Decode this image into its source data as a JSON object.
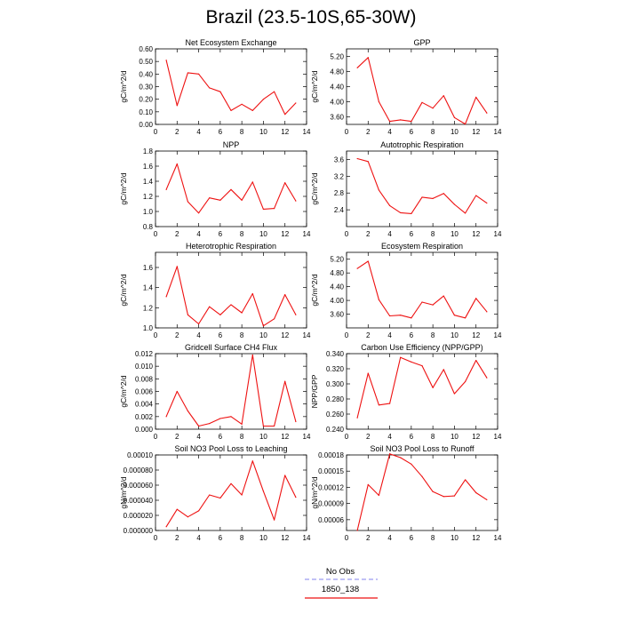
{
  "title": "Brazil (23.5-10S,65-30W)",
  "legend": {
    "entries": [
      {
        "label": "No Obs",
        "color": "#9c9cf0",
        "dash": true
      },
      {
        "label": "1850_138",
        "color": "#ee1111",
        "dash": false
      }
    ]
  },
  "chart_data": [
    {
      "type": "line",
      "title": "Net Ecosystem Exchange",
      "ylabel": "gC/m^2/d",
      "xlim": [
        0,
        14
      ],
      "xticks": [
        0,
        2,
        4,
        6,
        8,
        10,
        12,
        14
      ],
      "ylim": [
        0,
        0.6
      ],
      "yticks": [
        "0.00",
        "0.10",
        "0.20",
        "0.30",
        "0.40",
        "0.50",
        "0.60"
      ],
      "series": [
        {
          "color": "#ee1111",
          "x": [
            1,
            2,
            3,
            4,
            5,
            6,
            7,
            8,
            9,
            10,
            11,
            12,
            13
          ],
          "y": [
            0.51,
            0.15,
            0.41,
            0.4,
            0.29,
            0.26,
            0.11,
            0.16,
            0.11,
            0.2,
            0.26,
            0.08,
            0.17
          ]
        }
      ]
    },
    {
      "type": "line",
      "title": "GPP",
      "ylabel": "gC/m^2/d",
      "xlim": [
        0,
        14
      ],
      "xticks": [
        0,
        2,
        4,
        6,
        8,
        10,
        12,
        14
      ],
      "ylim": [
        3.4,
        5.4
      ],
      "yticks": [
        "3.60",
        "4.00",
        "4.40",
        "4.80",
        "5.20"
      ],
      "series": [
        {
          "color": "#ee1111",
          "x": [
            1,
            2,
            3,
            4,
            5,
            6,
            7,
            8,
            9,
            10,
            11,
            12,
            13
          ],
          "y": [
            4.9,
            5.17,
            4.0,
            3.48,
            3.52,
            3.48,
            3.98,
            3.83,
            4.16,
            3.58,
            3.41,
            4.12,
            3.7
          ]
        }
      ]
    },
    {
      "type": "line",
      "title": "NPP",
      "ylabel": "gC/m^2/d",
      "xlim": [
        0,
        14
      ],
      "xticks": [
        0,
        2,
        4,
        6,
        8,
        10,
        12,
        14
      ],
      "ylim": [
        0.8,
        1.8
      ],
      "yticks": [
        "0.8",
        "1.0",
        "1.2",
        "1.4",
        "1.6",
        "1.8"
      ],
      "series": [
        {
          "color": "#ee1111",
          "x": [
            1,
            2,
            3,
            4,
            5,
            6,
            7,
            8,
            9,
            10,
            11,
            12,
            13
          ],
          "y": [
            1.29,
            1.63,
            1.13,
            0.98,
            1.18,
            1.15,
            1.29,
            1.15,
            1.39,
            1.03,
            1.04,
            1.38,
            1.14
          ]
        }
      ]
    },
    {
      "type": "line",
      "title": "Autotrophic Respiration",
      "ylabel": "gC/m^2/d",
      "xlim": [
        0,
        14
      ],
      "xticks": [
        0,
        2,
        4,
        6,
        8,
        10,
        12,
        14
      ],
      "ylim": [
        2.0,
        3.8
      ],
      "yticks": [
        "2.4",
        "2.8",
        "3.2",
        "3.6"
      ],
      "series": [
        {
          "color": "#ee1111",
          "x": [
            1,
            2,
            3,
            4,
            5,
            6,
            7,
            8,
            9,
            10,
            11,
            12,
            13
          ],
          "y": [
            3.62,
            3.55,
            2.87,
            2.5,
            2.33,
            2.31,
            2.7,
            2.67,
            2.79,
            2.53,
            2.32,
            2.74,
            2.56
          ]
        }
      ]
    },
    {
      "type": "line",
      "title": "Heterotrophic Respiration",
      "ylabel": "gC/m^2/d",
      "xlim": [
        0,
        14
      ],
      "xticks": [
        0,
        2,
        4,
        6,
        8,
        10,
        12,
        14
      ],
      "ylim": [
        1.0,
        1.75
      ],
      "yticks": [
        "1.0",
        "1.2",
        "1.4",
        "1.6"
      ],
      "series": [
        {
          "color": "#ee1111",
          "x": [
            1,
            2,
            3,
            4,
            5,
            6,
            7,
            8,
            9,
            10,
            11,
            12,
            13
          ],
          "y": [
            1.31,
            1.61,
            1.13,
            1.04,
            1.21,
            1.13,
            1.23,
            1.15,
            1.34,
            1.02,
            1.09,
            1.33,
            1.13
          ]
        }
      ]
    },
    {
      "type": "line",
      "title": "Ecosystem Respiration",
      "ylabel": "gC/m^2/d",
      "xlim": [
        0,
        14
      ],
      "xticks": [
        0,
        2,
        4,
        6,
        8,
        10,
        12,
        14
      ],
      "ylim": [
        3.2,
        5.4
      ],
      "yticks": [
        "3.60",
        "4.00",
        "4.40",
        "4.80",
        "5.20"
      ],
      "series": [
        {
          "color": "#ee1111",
          "x": [
            1,
            2,
            3,
            4,
            5,
            6,
            7,
            8,
            9,
            10,
            11,
            12,
            13
          ],
          "y": [
            4.93,
            5.14,
            4.02,
            3.55,
            3.57,
            3.49,
            3.95,
            3.87,
            4.13,
            3.57,
            3.49,
            4.06,
            3.67
          ]
        }
      ]
    },
    {
      "type": "line",
      "title": "Gridcell Surface CH4 Flux",
      "ylabel": "gC/m^2/d",
      "xlim": [
        0,
        14
      ],
      "xticks": [
        0,
        2,
        4,
        6,
        8,
        10,
        12,
        14
      ],
      "ylim": [
        0,
        0.012
      ],
      "yticks": [
        "0.000",
        "0.002",
        "0.004",
        "0.006",
        "0.008",
        "0.010",
        "0.012"
      ],
      "series": [
        {
          "color": "#ee1111",
          "x": [
            1,
            2,
            3,
            4,
            5,
            6,
            7,
            8,
            9,
            10,
            11,
            12,
            13
          ],
          "y": [
            0.002,
            0.006,
            0.0029,
            0.0005,
            0.0009,
            0.0017,
            0.002,
            0.0008,
            0.0118,
            0.0005,
            0.0005,
            0.0076,
            0.0012
          ]
        }
      ]
    },
    {
      "type": "line",
      "title": "Carbon Use Efficiency (NPP/GPP)",
      "ylabel": "NPP/GPP",
      "xlim": [
        0,
        14
      ],
      "xticks": [
        0,
        2,
        4,
        6,
        8,
        10,
        12,
        14
      ],
      "ylim": [
        0.24,
        0.34
      ],
      "yticks": [
        "0.240",
        "0.260",
        "0.280",
        "0.300",
        "0.320",
        "0.340"
      ],
      "series": [
        {
          "color": "#ee1111",
          "x": [
            1,
            2,
            3,
            4,
            5,
            6,
            7,
            8,
            9,
            10,
            11,
            12,
            13
          ],
          "y": [
            0.255,
            0.314,
            0.272,
            0.274,
            0.335,
            0.329,
            0.324,
            0.295,
            0.319,
            0.287,
            0.303,
            0.331,
            0.308
          ]
        }
      ]
    },
    {
      "type": "line",
      "title": "Soil NO3 Pool Loss to Leaching",
      "ylabel": "gN/m^2/d",
      "xlim": [
        0,
        14
      ],
      "xticks": [
        0,
        2,
        4,
        6,
        8,
        10,
        12,
        14
      ],
      "ylim": [
        0,
        0.0001
      ],
      "yticks": [
        "0.000000",
        "0.000020",
        "0.000040",
        "0.000060",
        "0.000080",
        "0.00010"
      ],
      "series": [
        {
          "color": "#ee1111",
          "x": [
            1,
            2,
            3,
            4,
            5,
            6,
            7,
            8,
            9,
            10,
            11,
            12,
            13
          ],
          "y": [
            5e-06,
            2.8e-05,
            1.8e-05,
            2.6e-05,
            4.7e-05,
            4.3e-05,
            6.2e-05,
            4.7e-05,
            9.2e-05,
            5.2e-05,
            1.4e-05,
            7.3e-05,
            4.4e-05
          ]
        }
      ]
    },
    {
      "type": "line",
      "title": "Soil NO3 Pool Loss to Runoff",
      "ylabel": "gN/m^2/d",
      "xlim": [
        0,
        14
      ],
      "xticks": [
        0,
        2,
        4,
        6,
        8,
        10,
        12,
        14
      ],
      "ylim": [
        4e-05,
        0.00018
      ],
      "yticks": [
        "0.00006",
        "0.00009",
        "0.00012",
        "0.00015",
        "0.00018"
      ],
      "series": [
        {
          "color": "#ee1111",
          "x": [
            1,
            2,
            3,
            4,
            5,
            6,
            7,
            8,
            9,
            10,
            11,
            12,
            13
          ],
          "y": [
            4e-05,
            0.000125,
            0.000105,
            0.000182,
            0.000175,
            0.000163,
            0.00014,
            0.000112,
            0.000103,
            0.000104,
            0.000134,
            0.00011,
            9.7e-05
          ]
        }
      ]
    }
  ]
}
